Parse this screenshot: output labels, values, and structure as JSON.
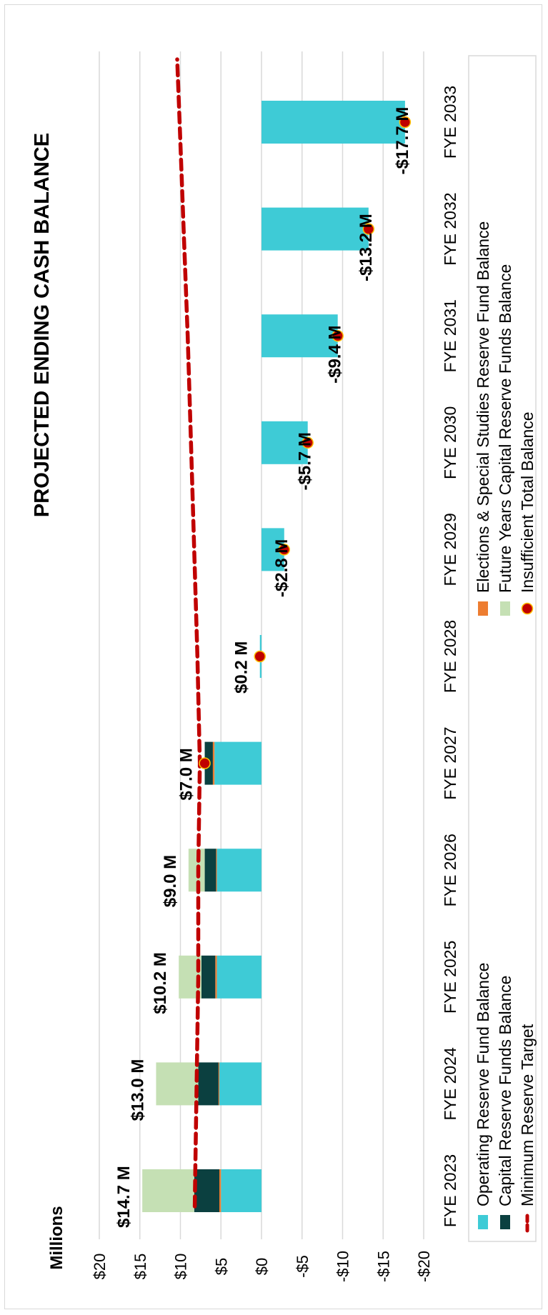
{
  "chart_data": {
    "type": "bar",
    "orientation": "rotated",
    "title": "PROJECTED ENDING CASH BALANCE",
    "ylabel": "Millions",
    "ylim": [
      -20,
      20
    ],
    "y_ticks": [
      20,
      15,
      10,
      5,
      0,
      -5,
      -10,
      -15,
      -20
    ],
    "y_tick_labels": [
      "$20",
      "$15",
      "$10",
      "$5",
      "$0",
      "-$5",
      "-$10",
      "-$15",
      "-$20"
    ],
    "grid": true,
    "legend_position": "bottom",
    "categories": [
      "FYE 2023",
      "FYE 2024",
      "FYE 2025",
      "FYE 2026",
      "FYE 2027",
      "FYE 2028",
      "FYE 2029",
      "FYE 2030",
      "FYE 2031",
      "FYE 2032",
      "FYE 2033"
    ],
    "series": [
      {
        "name": "Operating Reserve Fund Balance",
        "color": "#3ecbd6",
        "values": [
          5.0,
          5.2,
          5.5,
          5.5,
          5.8,
          0.2,
          -2.8,
          -5.7,
          -9.4,
          -13.2,
          -17.7
        ]
      },
      {
        "name": "Elections & Special Studies Reserve Fund Balance",
        "color": "#ed7d31",
        "values": [
          0.2,
          0.1,
          0.2,
          0.1,
          0.2,
          0,
          0,
          0,
          0,
          0,
          0
        ]
      },
      {
        "name": "Capital Reserve Funds Balance",
        "color": "#0b4040",
        "values": [
          3.1,
          2.5,
          1.7,
          1.4,
          1.0,
          0,
          0,
          0,
          0,
          0,
          0
        ]
      },
      {
        "name": "Future Years Capital Reserve Funds Balance",
        "color": "#c5e0b4",
        "values": [
          6.4,
          5.2,
          2.8,
          2.0,
          0,
          0,
          0,
          0,
          0,
          0,
          0
        ]
      }
    ],
    "insufficient_total_balance": {
      "name": "Insufficient Total Balance",
      "color": "#c00000",
      "values": [
        null,
        null,
        null,
        null,
        7.0,
        0.2,
        -2.8,
        -5.7,
        -9.4,
        -13.2,
        -17.7
      ]
    },
    "minimum_reserve_target": {
      "name": "Minimum Reserve Target",
      "color": "#c00000",
      "values": [
        8.2,
        8.0,
        7.8,
        7.8,
        7.6,
        7.9,
        8.3,
        8.7,
        9.1,
        9.6,
        10.1
      ]
    },
    "total_labels": [
      "$14.7 M",
      "$13.0 M",
      "$10.2 M",
      "$9.0 M",
      "$7.0 M",
      "$0.2 M",
      "-$2.8 M",
      "-$5.7 M",
      "-$9.4 M",
      "-$13.2 M",
      "-$17.7 M"
    ],
    "total_label_values": [
      14.7,
      13.0,
      10.2,
      9.0,
      7.0,
      0.2,
      -2.8,
      -5.7,
      -9.4,
      -13.2,
      -17.7
    ]
  }
}
